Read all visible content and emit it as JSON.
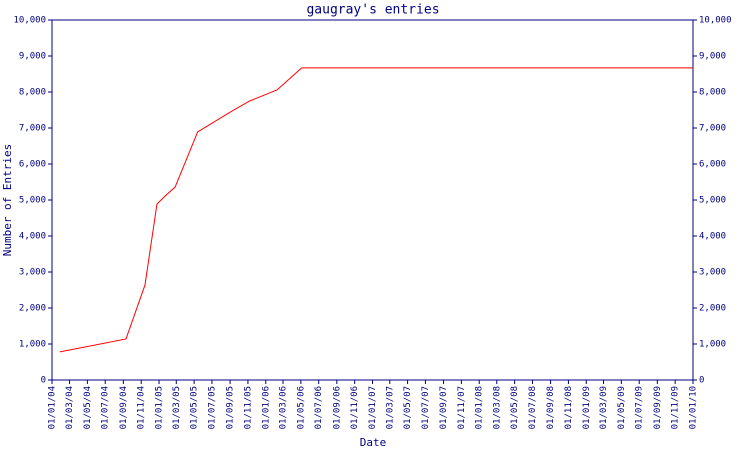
{
  "chart_data": {
    "type": "line",
    "title": "gaugray's entries",
    "x_label": "Date",
    "y_label": "Number of Entries",
    "x": [
      "2004-01-28",
      "2004-09-10",
      "2004-11-14",
      "2004-12-25",
      "2005-01-22",
      "2005-02-25",
      "2005-05-13",
      "2005-09-01",
      "2005-11-07",
      "2006-02-09",
      "2006-05-04",
      "2010-01-01"
    ],
    "series": [
      {
        "name": "gaugray",
        "color": "#ff0000",
        "values": [
          780,
          1140,
          2640,
          4890,
          5110,
          5360,
          6890,
          7440,
          7750,
          8060,
          8670,
          8670
        ]
      }
    ],
    "xlim": [
      "2004-01-01",
      "2010-01-01"
    ],
    "xticks": [
      {
        "value": "2004-01-01",
        "label": "01/01/04"
      },
      {
        "value": "2004-03-01",
        "label": "01/03/04"
      },
      {
        "value": "2004-05-01",
        "label": "01/05/04"
      },
      {
        "value": "2004-07-01",
        "label": "01/07/04"
      },
      {
        "value": "2004-09-01",
        "label": "01/09/04"
      },
      {
        "value": "2004-11-01",
        "label": "01/11/04"
      },
      {
        "value": "2005-01-01",
        "label": "01/01/05"
      },
      {
        "value": "2005-03-01",
        "label": "01/03/05"
      },
      {
        "value": "2005-05-01",
        "label": "01/05/05"
      },
      {
        "value": "2005-07-01",
        "label": "01/07/05"
      },
      {
        "value": "2005-09-01",
        "label": "01/09/05"
      },
      {
        "value": "2005-11-01",
        "label": "01/11/05"
      },
      {
        "value": "2006-01-01",
        "label": "01/01/06"
      },
      {
        "value": "2006-03-01",
        "label": "01/03/06"
      },
      {
        "value": "2006-05-01",
        "label": "01/05/06"
      },
      {
        "value": "2006-07-01",
        "label": "01/07/06"
      },
      {
        "value": "2006-09-01",
        "label": "01/09/06"
      },
      {
        "value": "2006-11-01",
        "label": "01/11/06"
      },
      {
        "value": "2007-01-01",
        "label": "01/01/07"
      },
      {
        "value": "2007-03-01",
        "label": "01/03/07"
      },
      {
        "value": "2007-05-01",
        "label": "01/05/07"
      },
      {
        "value": "2007-07-01",
        "label": "01/07/07"
      },
      {
        "value": "2007-09-01",
        "label": "01/09/07"
      },
      {
        "value": "2007-11-01",
        "label": "01/11/07"
      },
      {
        "value": "2008-01-01",
        "label": "01/01/08"
      },
      {
        "value": "2008-03-01",
        "label": "01/03/08"
      },
      {
        "value": "2008-05-01",
        "label": "01/05/08"
      },
      {
        "value": "2008-07-01",
        "label": "01/07/08"
      },
      {
        "value": "2008-09-01",
        "label": "01/09/08"
      },
      {
        "value": "2008-11-01",
        "label": "01/11/08"
      },
      {
        "value": "2009-01-01",
        "label": "01/01/09"
      },
      {
        "value": "2009-03-01",
        "label": "01/03/09"
      },
      {
        "value": "2009-05-01",
        "label": "01/05/09"
      },
      {
        "value": "2009-07-01",
        "label": "01/07/09"
      },
      {
        "value": "2009-09-01",
        "label": "01/09/09"
      },
      {
        "value": "2009-11-01",
        "label": "01/11/09"
      },
      {
        "value": "2010-01-01",
        "label": "01/01/10"
      }
    ],
    "ylim": [
      0,
      10000
    ],
    "yticks": [
      0,
      {
        "value": 1000,
        "label": "1,000"
      },
      {
        "value": 2000,
        "label": "2,000"
      },
      {
        "value": 3000,
        "label": "3,000"
      },
      {
        "value": 4000,
        "label": "4,000"
      },
      {
        "value": 5000,
        "label": "5,000"
      },
      {
        "value": 6000,
        "label": "6,000"
      },
      {
        "value": 7000,
        "label": "7,000"
      },
      {
        "value": 8000,
        "label": "8,000"
      },
      {
        "value": 9000,
        "label": "9,000"
      },
      {
        "value": 10000,
        "label": "10,000"
      }
    ],
    "axis_color": "#000080",
    "grid": false
  }
}
